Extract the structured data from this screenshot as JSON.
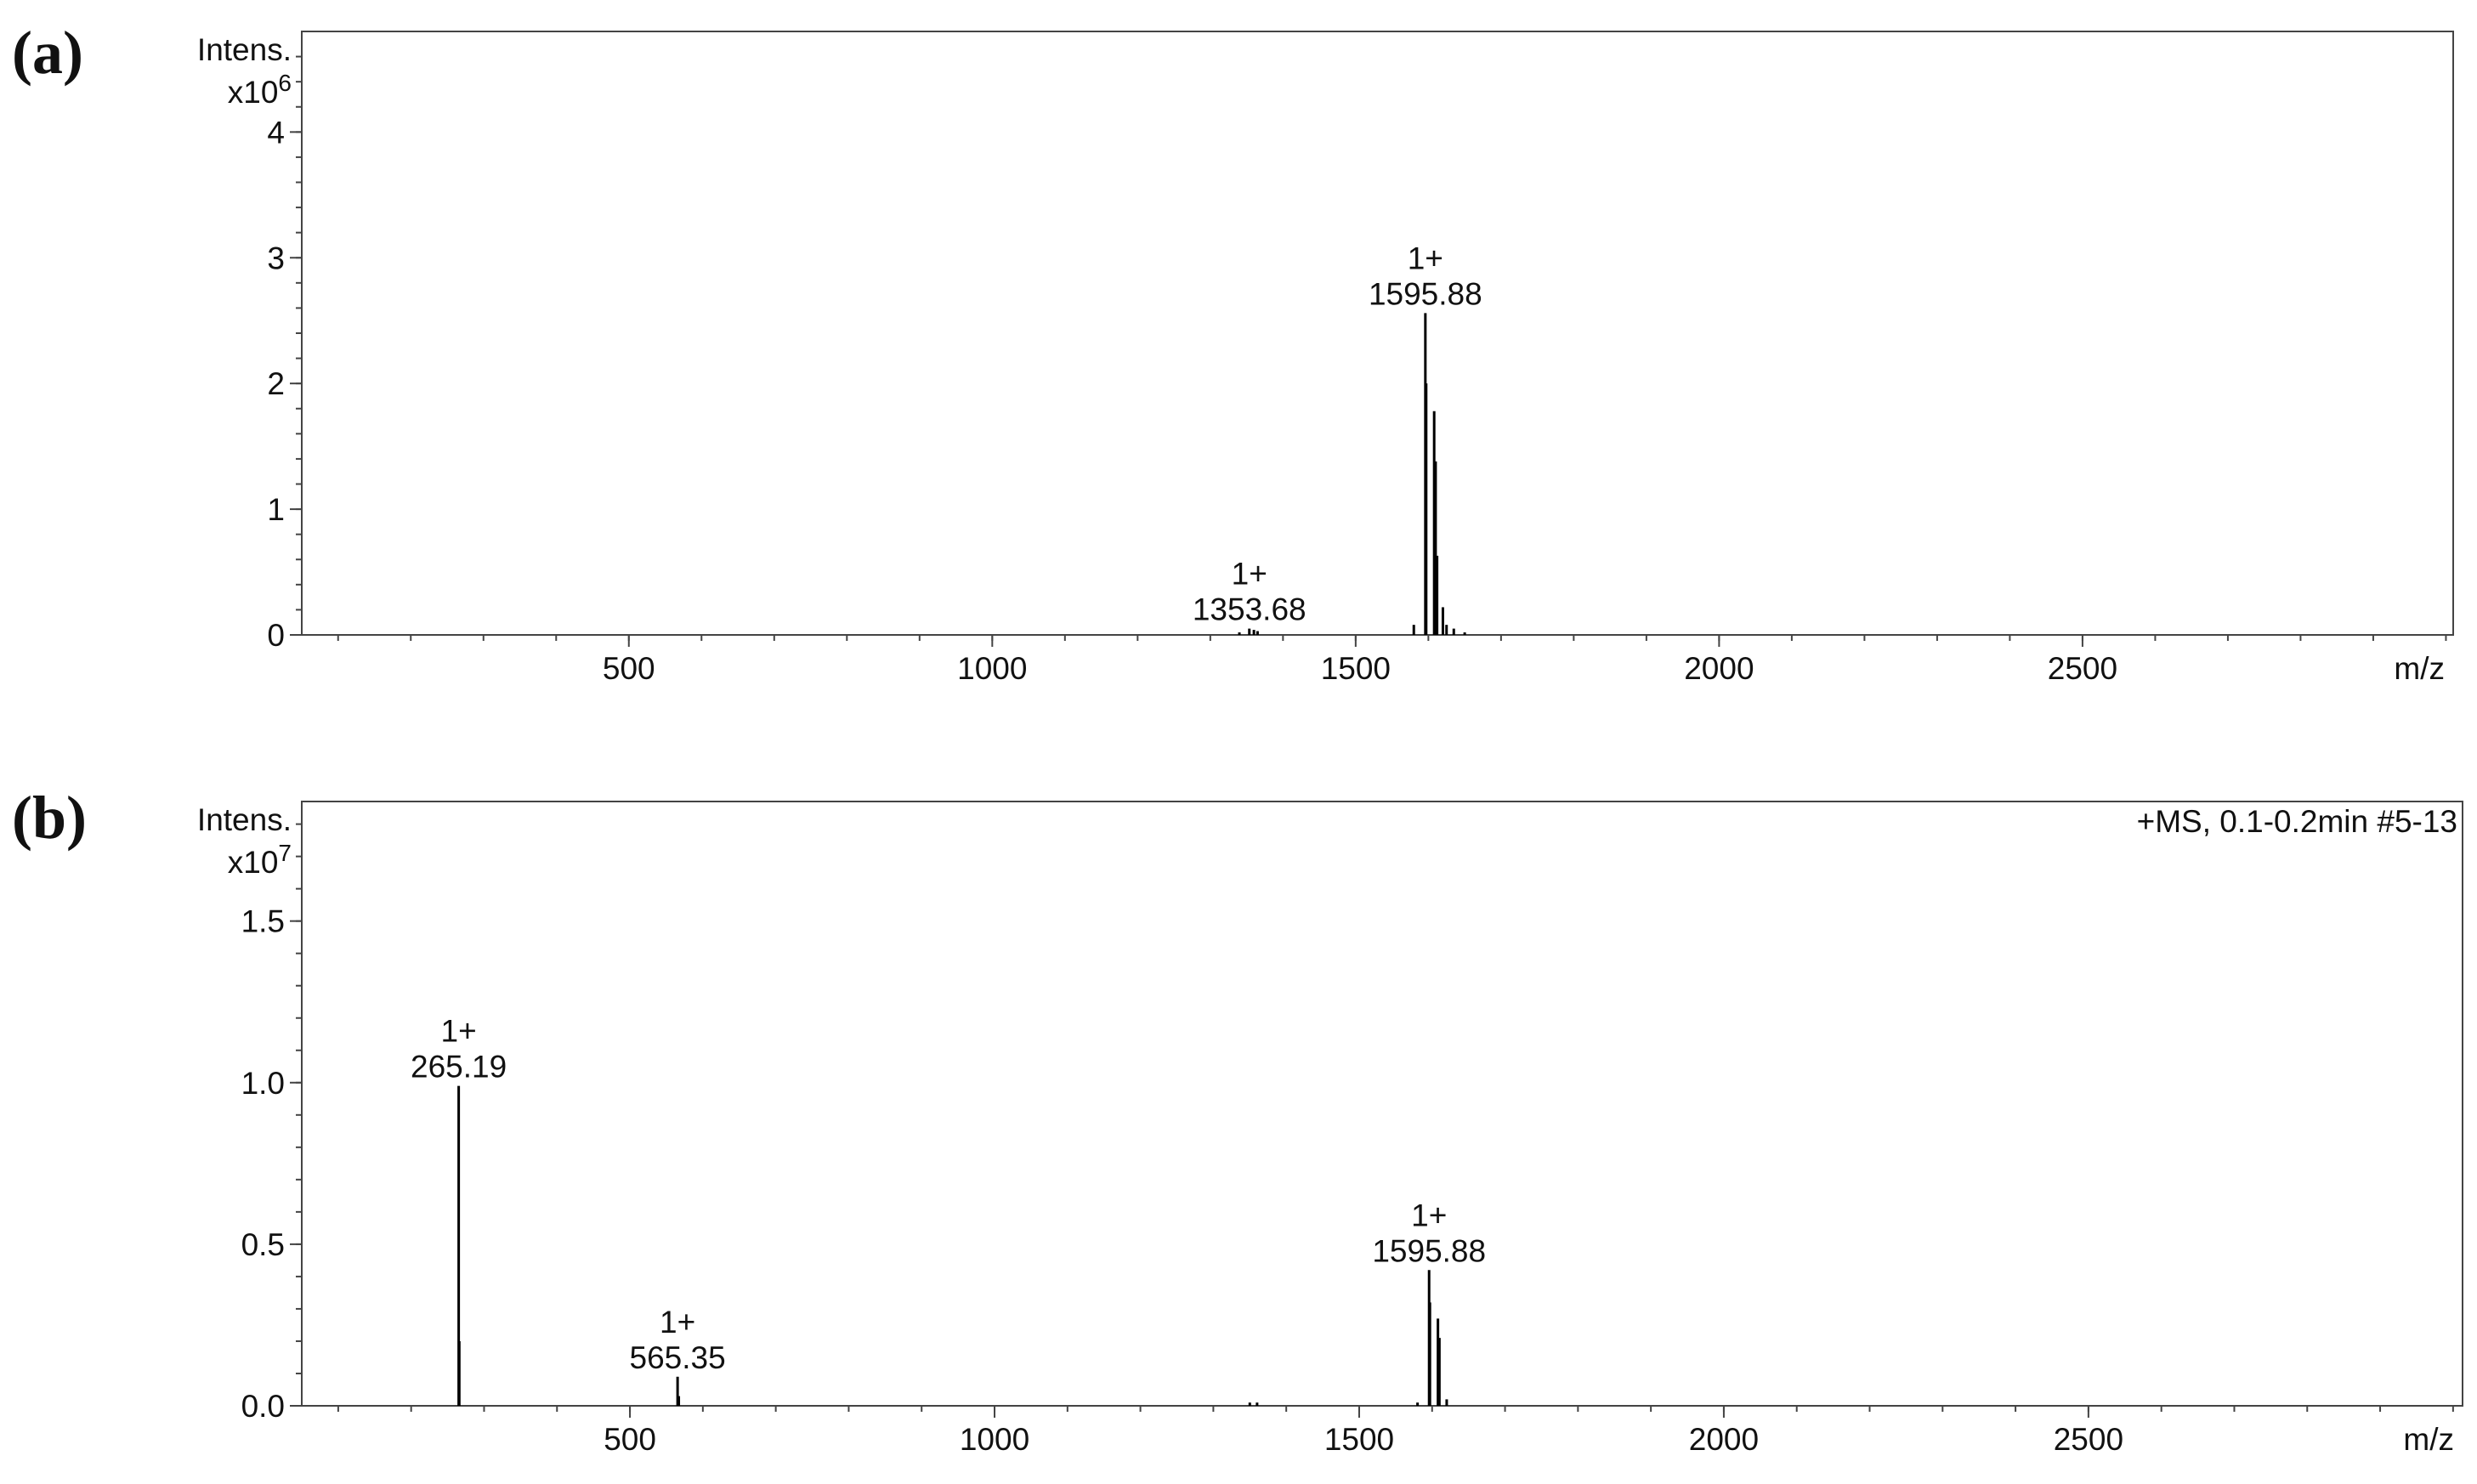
{
  "chart_data": [
    {
      "type": "stem",
      "panel_label": "(a)",
      "y_label": "Intens.",
      "y_multiplier": "x10",
      "y_exponent": 6,
      "x_label": "m/z",
      "xlim": [
        50,
        3010
      ],
      "xticks": [
        500,
        1000,
        1500,
        2000,
        2500
      ],
      "x_minor_tick_step": 100,
      "ylim": [
        0,
        4.8
      ],
      "yticks": [
        0,
        1,
        2,
        3,
        4
      ],
      "y_minor_tick_step": 0.2,
      "color": "#000000",
      "x": [
        1340,
        1353.68,
        1360,
        1365,
        1580,
        1595.88,
        1597,
        1608,
        1610,
        1612,
        1620,
        1625,
        1635,
        1650
      ],
      "values": [
        0.02,
        0.05,
        0.04,
        0.03,
        0.08,
        2.56,
        2.0,
        1.78,
        1.38,
        0.63,
        0.22,
        0.08,
        0.05,
        0.02
      ],
      "annotations": [
        {
          "x": 1353.68,
          "y": 0.05,
          "charge": "1+",
          "label": "1353.68"
        },
        {
          "x": 1595.88,
          "y": 2.56,
          "charge": "1+",
          "label": "1595.88"
        }
      ]
    },
    {
      "type": "stem",
      "panel_label": "(b)",
      "y_label": "Intens.",
      "y_multiplier": "x10",
      "y_exponent": 7,
      "x_label": "m/z",
      "note": "+MS, 0.1-0.2min #5-13",
      "xlim": [
        50,
        3013
      ],
      "xticks": [
        500,
        1000,
        1500,
        2000,
        2500
      ],
      "x_minor_tick_step": 100,
      "ylim": [
        0,
        1.87
      ],
      "yticks": [
        {
          "value": 0,
          "label": "0.0"
        },
        {
          "value": 0.5,
          "label": "0.5"
        },
        {
          "value": 1,
          "label": "1.0"
        },
        {
          "value": 1.5,
          "label": "1.5"
        }
      ],
      "y_minor_tick_step": 0.1,
      "color": "#000000",
      "x": [
        265.19,
        266,
        565.35,
        567,
        1350,
        1360,
        1580,
        1595.88,
        1597,
        1608,
        1610,
        1620
      ],
      "values": [
        0.99,
        0.2,
        0.09,
        0.03,
        0.01,
        0.01,
        0.01,
        0.42,
        0.32,
        0.27,
        0.21,
        0.02
      ],
      "annotations": [
        {
          "x": 265.19,
          "y": 0.99,
          "charge": "1+",
          "label": "265.19"
        },
        {
          "x": 565.35,
          "y": 0.09,
          "charge": "1+",
          "label": "565.35"
        },
        {
          "x": 1595.88,
          "y": 0.42,
          "charge": "1+",
          "label": "1595.88"
        }
      ]
    }
  ]
}
